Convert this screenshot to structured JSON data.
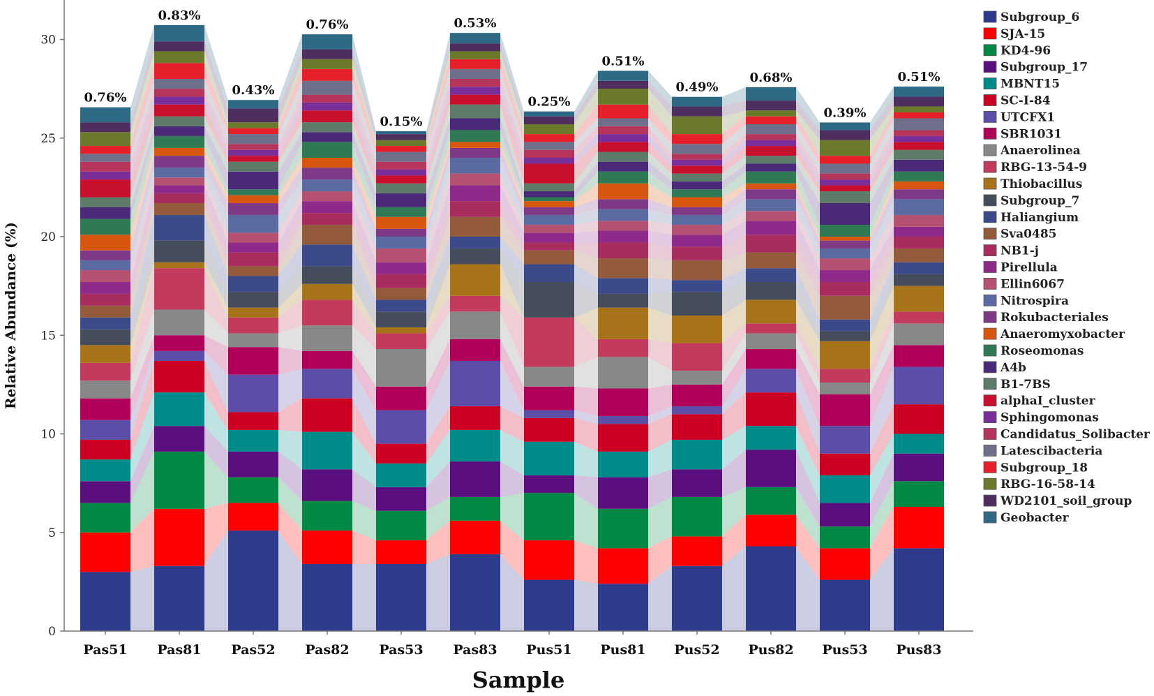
{
  "chart_data": {
    "type": "bar",
    "stacked": true,
    "xlabel": "Sample",
    "ylabel": "Relative Abundance (%)",
    "ylim": [
      0,
      32
    ],
    "yticks": [
      0,
      5,
      10,
      15,
      20,
      25,
      30
    ],
    "categories": [
      "Pas51",
      "Pas81",
      "Pas52",
      "Pas82",
      "Pas53",
      "Pas83",
      "Pus51",
      "Pus81",
      "Pus52",
      "Pus82",
      "Pus53",
      "Pus83"
    ],
    "bar_top_labels": [
      "0.76%",
      "0.83%",
      "0.43%",
      "0.76%",
      "0.15%",
      "0.53%",
      "0.25%",
      "0.51%",
      "0.49%",
      "0.68%",
      "0.39%",
      "0.51%"
    ],
    "legend_position": "right",
    "series": [
      {
        "name": "Subgroup_6",
        "color": "#2E3A8C",
        "values": [
          3.0,
          3.3,
          5.1,
          3.4,
          3.4,
          3.9,
          2.6,
          2.4,
          3.3,
          4.3,
          2.6,
          4.2
        ]
      },
      {
        "name": "SJA-15",
        "color": "#FF0000",
        "values": [
          2.0,
          2.9,
          1.4,
          1.7,
          1.2,
          1.7,
          2.0,
          1.8,
          1.5,
          1.6,
          1.6,
          2.1
        ]
      },
      {
        "name": "KD4-96",
        "color": "#008844",
        "values": [
          1.5,
          2.9,
          1.3,
          1.5,
          1.5,
          1.2,
          2.4,
          2.0,
          2.0,
          1.4,
          1.1,
          1.3
        ]
      },
      {
        "name": "Subgroup_17",
        "color": "#5B0F7E",
        "values": [
          1.1,
          1.3,
          1.3,
          1.6,
          1.2,
          1.8,
          0.9,
          1.6,
          1.4,
          1.9,
          1.2,
          1.4
        ]
      },
      {
        "name": "MBNT15",
        "color": "#008B8B",
        "values": [
          1.1,
          1.7,
          1.1,
          1.9,
          1.2,
          1.6,
          1.7,
          1.3,
          1.5,
          1.2,
          1.4,
          1.0
        ]
      },
      {
        "name": "SC-I-84",
        "color": "#CC0022",
        "values": [
          1.0,
          1.6,
          0.9,
          1.7,
          1.0,
          1.2,
          1.2,
          1.4,
          1.3,
          1.7,
          1.1,
          1.5
        ]
      },
      {
        "name": "UTCFX1",
        "color": "#5C4EA8",
        "values": [
          1.0,
          0.5,
          1.9,
          1.5,
          1.7,
          2.3,
          0.4,
          0.4,
          0.4,
          1.2,
          1.4,
          1.9
        ]
      },
      {
        "name": "SBR1031",
        "color": "#B0005A",
        "values": [
          1.1,
          0.8,
          1.4,
          0.9,
          1.2,
          1.1,
          1.2,
          1.4,
          1.1,
          1.0,
          1.6,
          1.1
        ]
      },
      {
        "name": "Anaerolinea",
        "color": "#888888",
        "values": [
          0.9,
          1.3,
          0.7,
          1.3,
          1.9,
          1.4,
          1.0,
          1.6,
          0.7,
          0.8,
          0.6,
          1.1
        ]
      },
      {
        "name": "RBG-13-54-9",
        "color": "#C23B5C",
        "values": [
          0.9,
          2.1,
          0.8,
          1.3,
          0.8,
          0.8,
          2.5,
          0.9,
          1.4,
          0.5,
          0.7,
          0.6
        ]
      },
      {
        "name": "Thiobacillus",
        "color": "#A8741A",
        "values": [
          0.9,
          0.3,
          0.5,
          0.8,
          0.3,
          1.6,
          0.0,
          1.6,
          1.4,
          1.2,
          1.4,
          1.3
        ]
      },
      {
        "name": "Subgroup_7",
        "color": "#454D5C",
        "values": [
          0.8,
          1.1,
          0.8,
          0.9,
          0.8,
          0.8,
          1.8,
          0.7,
          1.2,
          0.9,
          0.5,
          0.6
        ]
      },
      {
        "name": "Haliangium",
        "color": "#3C4A8A",
        "values": [
          0.6,
          1.3,
          0.8,
          1.1,
          0.6,
          0.6,
          0.9,
          0.8,
          0.6,
          0.7,
          0.6,
          0.6
        ]
      },
      {
        "name": "Sva0485",
        "color": "#935A3C",
        "values": [
          0.6,
          0.6,
          0.5,
          1.0,
          0.6,
          1.0,
          0.7,
          1.0,
          1.0,
          0.8,
          1.2,
          0.7
        ]
      },
      {
        "name": "NB1-j",
        "color": "#A82C5E",
        "values": [
          0.6,
          0.5,
          0.7,
          0.6,
          0.7,
          0.8,
          0.4,
          0.8,
          0.7,
          0.9,
          0.7,
          0.6
        ]
      },
      {
        "name": "Pirellula",
        "color": "#8E2A8A",
        "values": [
          0.6,
          0.4,
          0.5,
          0.6,
          0.6,
          0.8,
          0.5,
          0.6,
          0.6,
          0.7,
          0.6,
          0.5
        ]
      },
      {
        "name": "Ellin6067",
        "color": "#B55272",
        "values": [
          0.6,
          0.4,
          0.5,
          0.5,
          0.7,
          0.6,
          0.4,
          0.5,
          0.5,
          0.5,
          0.6,
          0.6
        ]
      },
      {
        "name": "Nitrospira",
        "color": "#5B6AA0",
        "values": [
          0.5,
          0.5,
          0.9,
          0.6,
          0.6,
          0.8,
          0.5,
          0.6,
          0.5,
          0.6,
          0.5,
          0.8
        ]
      },
      {
        "name": "Rokubacteriales",
        "color": "#7E3A86",
        "values": [
          0.5,
          0.6,
          0.6,
          0.6,
          0.4,
          0.5,
          0.4,
          0.5,
          0.4,
          0.5,
          0.4,
          0.5
        ]
      },
      {
        "name": "Anaeromyxobacter",
        "color": "#D9560E",
        "values": [
          0.8,
          0.4,
          0.4,
          0.5,
          0.6,
          0.3,
          0.3,
          0.8,
          0.5,
          0.3,
          0.2,
          0.4
        ]
      },
      {
        "name": "Roseomonas",
        "color": "#2F7A55",
        "values": [
          0.8,
          0.6,
          0.3,
          0.8,
          0.5,
          0.6,
          0.2,
          0.6,
          0.4,
          0.6,
          0.6,
          0.5
        ]
      },
      {
        "name": "A4b",
        "color": "#4A2A78",
        "values": [
          0.6,
          0.5,
          0.9,
          0.5,
          0.7,
          0.6,
          0.3,
          0.5,
          0.4,
          0.4,
          1.1,
          0.6
        ]
      },
      {
        "name": "B1-7BS",
        "color": "#5E7A68",
        "values": [
          0.5,
          0.5,
          0.5,
          0.5,
          0.5,
          0.7,
          0.4,
          0.5,
          0.4,
          0.4,
          0.6,
          0.5
        ]
      },
      {
        "name": "alphaI_cluster",
        "color": "#C8102E",
        "values": [
          0.9,
          0.6,
          0.3,
          0.6,
          0.4,
          0.5,
          1.0,
          0.5,
          0.4,
          0.5,
          0.3,
          0.4
        ]
      },
      {
        "name": "Sphingomonas",
        "color": "#7A2E9A",
        "values": [
          0.4,
          0.4,
          0.3,
          0.4,
          0.3,
          0.4,
          0.3,
          0.4,
          0.3,
          0.3,
          0.3,
          0.3
        ]
      },
      {
        "name": "Candidatus_Solibacter",
        "color": "#B5365A",
        "values": [
          0.5,
          0.4,
          0.3,
          0.4,
          0.4,
          0.4,
          0.4,
          0.4,
          0.3,
          0.3,
          0.3,
          0.3
        ]
      },
      {
        "name": "Latescibacteria",
        "color": "#6E6F8A",
        "values": [
          0.4,
          0.5,
          0.5,
          0.7,
          0.5,
          0.5,
          0.4,
          0.4,
          0.5,
          0.5,
          0.5,
          0.6
        ]
      },
      {
        "name": "Subgroup_18",
        "color": "#E5202A",
        "values": [
          0.4,
          0.8,
          0.3,
          0.6,
          0.3,
          0.5,
          0.4,
          0.7,
          0.5,
          0.4,
          0.4,
          0.3
        ]
      },
      {
        "name": "RBG-16-58-14",
        "color": "#6B7A2A",
        "values": [
          0.7,
          0.6,
          0.3,
          0.5,
          0.3,
          0.4,
          0.5,
          0.8,
          0.9,
          0.3,
          0.8,
          0.3
        ]
      },
      {
        "name": "WD2101_soil_group",
        "color": "#4E2E5E",
        "values": [
          0.5,
          0.5,
          0.7,
          0.5,
          0.3,
          0.4,
          0.4,
          0.4,
          0.5,
          0.5,
          0.5,
          0.5
        ]
      },
      {
        "name": "Geobacter",
        "color": "#2E6A85",
        "values": [
          0.76,
          0.83,
          0.43,
          0.76,
          0.15,
          0.53,
          0.25,
          0.51,
          0.49,
          0.68,
          0.39,
          0.51
        ]
      }
    ]
  }
}
